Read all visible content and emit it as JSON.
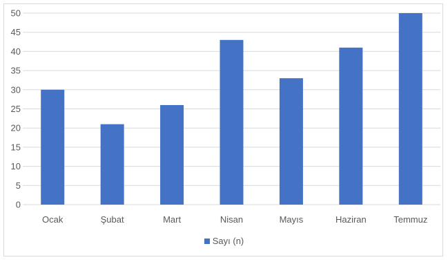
{
  "chart_data": {
    "type": "bar",
    "categories": [
      "Ocak",
      "Şubat",
      "Mart",
      "Nisan",
      "Mayıs",
      "Haziran",
      "Temmuz"
    ],
    "series": [
      {
        "name": "Sayı (n)",
        "values": [
          30,
          21,
          26,
          43,
          33,
          41,
          50
        ],
        "color": "#4472c4"
      }
    ],
    "ylim": [
      0,
      50
    ],
    "yticks": [
      "0",
      "5",
      "10",
      "15",
      "20",
      "25",
      "30",
      "35",
      "40",
      "45",
      "50"
    ],
    "grid": true,
    "legend_position": "bottom",
    "gridline_color": "#d9d9d9"
  }
}
